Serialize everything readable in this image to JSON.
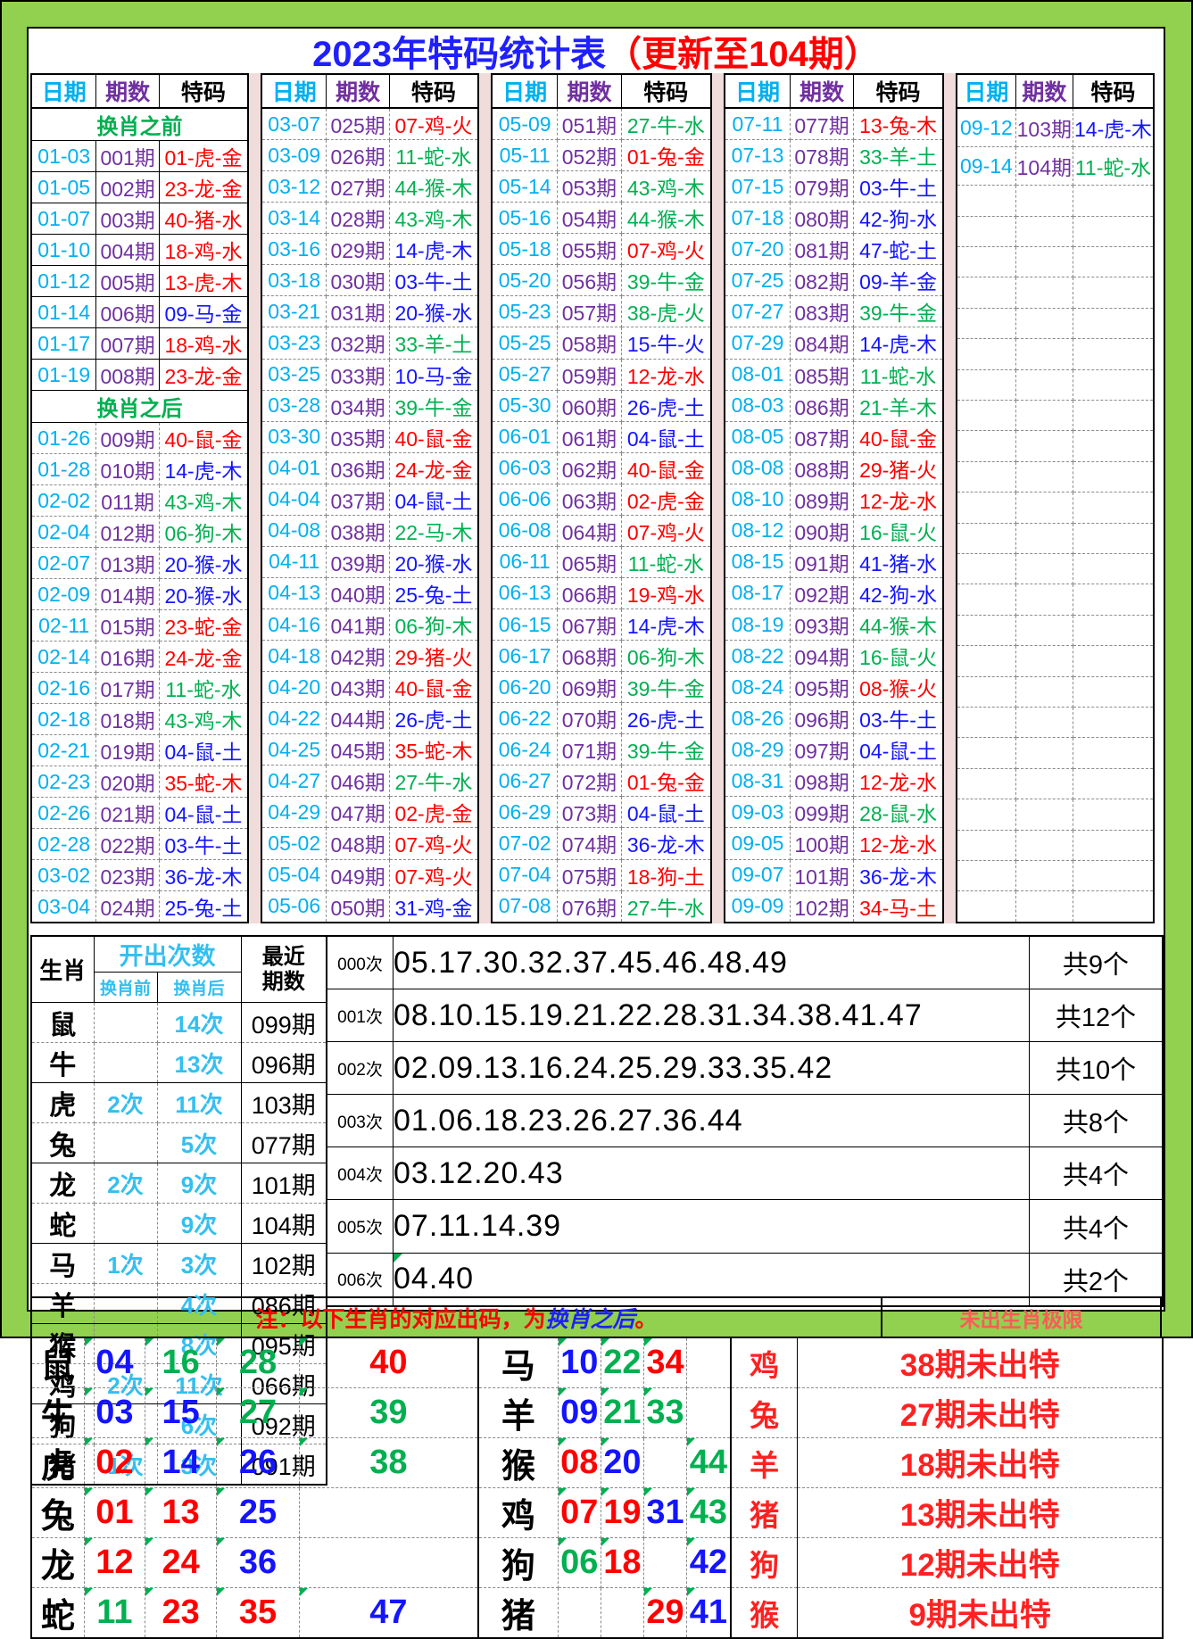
{
  "title": {
    "main": "2023年特码统计表",
    "suffix": "（更新至104期）"
  },
  "colors": {
    "title_blue": "#1F1FFF",
    "title_red": "#FF0000",
    "date": "#00B0F0",
    "period": "#7030A0",
    "red": "#FF0000",
    "blue": "#1414FF",
    "green": "#00B050",
    "section_green": "#00B050",
    "stat_cyan": "#33BFF0",
    "note_red": "#FF0000",
    "note_blue": "#1F1FFF",
    "limits_header_red": "#FF5A5A",
    "annex_red": "#FF2121",
    "separator_pink": "#EFDCDB",
    "background_green": "#92D050"
  },
  "ball_colors": {
    "red": [
      1,
      2,
      7,
      8,
      12,
      13,
      18,
      19,
      23,
      24,
      29,
      30,
      34,
      35,
      40,
      45,
      46
    ],
    "blue": [
      3,
      4,
      9,
      10,
      14,
      15,
      20,
      25,
      26,
      31,
      36,
      37,
      41,
      42,
      47,
      48
    ],
    "green": [
      5,
      6,
      11,
      16,
      17,
      21,
      22,
      27,
      28,
      32,
      33,
      38,
      39,
      43,
      44,
      49
    ]
  },
  "main_table": {
    "headers": [
      "日期",
      "期数",
      "特码"
    ],
    "groups": [
      {
        "rows": [
          {
            "s": "换肖之前"
          },
          {
            "d": "01-03",
            "p": "001期",
            "c": "01-虎-金",
            "solid": true
          },
          {
            "d": "01-05",
            "p": "002期",
            "c": "23-龙-金",
            "solid": true
          },
          {
            "d": "01-07",
            "p": "003期",
            "c": "40-猪-水",
            "solid": true
          },
          {
            "d": "01-10",
            "p": "004期",
            "c": "18-鸡-水",
            "solid": true
          },
          {
            "d": "01-12",
            "p": "005期",
            "c": "13-虎-木",
            "solid": true
          },
          {
            "d": "01-14",
            "p": "006期",
            "c": "09-马-金",
            "solid": true
          },
          {
            "d": "01-17",
            "p": "007期",
            "c": "18-鸡-水",
            "solid": true
          },
          {
            "d": "01-19",
            "p": "008期",
            "c": "23-龙-金",
            "solid": true
          },
          {
            "s": "换肖之后"
          },
          {
            "d": "01-26",
            "p": "009期",
            "c": "40-鼠-金"
          },
          {
            "d": "01-28",
            "p": "010期",
            "c": "14-虎-木"
          },
          {
            "d": "02-02",
            "p": "011期",
            "c": "43-鸡-木"
          },
          {
            "d": "02-04",
            "p": "012期",
            "c": "06-狗-木"
          },
          {
            "d": "02-07",
            "p": "013期",
            "c": "20-猴-水"
          },
          {
            "d": "02-09",
            "p": "014期",
            "c": "20-猴-水"
          },
          {
            "d": "02-11",
            "p": "015期",
            "c": "23-蛇-金"
          },
          {
            "d": "02-14",
            "p": "016期",
            "c": "24-龙-金"
          },
          {
            "d": "02-16",
            "p": "017期",
            "c": "11-蛇-水"
          },
          {
            "d": "02-18",
            "p": "018期",
            "c": "43-鸡-木"
          },
          {
            "d": "02-21",
            "p": "019期",
            "c": "04-鼠-土"
          },
          {
            "d": "02-23",
            "p": "020期",
            "c": "35-蛇-木"
          },
          {
            "d": "02-26",
            "p": "021期",
            "c": "04-鼠-土"
          },
          {
            "d": "02-28",
            "p": "022期",
            "c": "03-牛-土"
          },
          {
            "d": "03-02",
            "p": "023期",
            "c": "36-龙-木"
          },
          {
            "d": "03-04",
            "p": "024期",
            "c": "25-兔-土"
          }
        ]
      },
      {
        "rows": [
          {
            "d": "03-07",
            "p": "025期",
            "c": "07-鸡-火"
          },
          {
            "d": "03-09",
            "p": "026期",
            "c": "11-蛇-水"
          },
          {
            "d": "03-12",
            "p": "027期",
            "c": "44-猴-木"
          },
          {
            "d": "03-14",
            "p": "028期",
            "c": "43-鸡-木"
          },
          {
            "d": "03-16",
            "p": "029期",
            "c": "14-虎-木"
          },
          {
            "d": "03-18",
            "p": "030期",
            "c": "03-牛-土"
          },
          {
            "d": "03-21",
            "p": "031期",
            "c": "20-猴-水"
          },
          {
            "d": "03-23",
            "p": "032期",
            "c": "33-羊-土"
          },
          {
            "d": "03-25",
            "p": "033期",
            "c": "10-马-金"
          },
          {
            "d": "03-28",
            "p": "034期",
            "c": "39-牛-金"
          },
          {
            "d": "03-30",
            "p": "035期",
            "c": "40-鼠-金"
          },
          {
            "d": "04-01",
            "p": "036期",
            "c": "24-龙-金"
          },
          {
            "d": "04-04",
            "p": "037期",
            "c": "04-鼠-土"
          },
          {
            "d": "04-08",
            "p": "038期",
            "c": "22-马-木"
          },
          {
            "d": "04-11",
            "p": "039期",
            "c": "20-猴-水"
          },
          {
            "d": "04-13",
            "p": "040期",
            "c": "25-兔-土"
          },
          {
            "d": "04-16",
            "p": "041期",
            "c": "06-狗-木"
          },
          {
            "d": "04-18",
            "p": "042期",
            "c": "29-猪-火"
          },
          {
            "d": "04-20",
            "p": "043期",
            "c": "40-鼠-金"
          },
          {
            "d": "04-22",
            "p": "044期",
            "c": "26-虎-土"
          },
          {
            "d": "04-25",
            "p": "045期",
            "c": "35-蛇-木"
          },
          {
            "d": "04-27",
            "p": "046期",
            "c": "27-牛-水"
          },
          {
            "d": "04-29",
            "p": "047期",
            "c": "02-虎-金"
          },
          {
            "d": "05-02",
            "p": "048期",
            "c": "07-鸡-火"
          },
          {
            "d": "05-04",
            "p": "049期",
            "c": "07-鸡-火"
          },
          {
            "d": "05-06",
            "p": "050期",
            "c": "31-鸡-金"
          }
        ]
      },
      {
        "rows": [
          {
            "d": "05-09",
            "p": "051期",
            "c": "27-牛-水"
          },
          {
            "d": "05-11",
            "p": "052期",
            "c": "01-兔-金"
          },
          {
            "d": "05-14",
            "p": "053期",
            "c": "43-鸡-木"
          },
          {
            "d": "05-16",
            "p": "054期",
            "c": "44-猴-木"
          },
          {
            "d": "05-18",
            "p": "055期",
            "c": "07-鸡-火"
          },
          {
            "d": "05-20",
            "p": "056期",
            "c": "39-牛-金"
          },
          {
            "d": "05-23",
            "p": "057期",
            "c": "38-虎-火"
          },
          {
            "d": "05-25",
            "p": "058期",
            "c": "15-牛-火"
          },
          {
            "d": "05-27",
            "p": "059期",
            "c": "12-龙-水"
          },
          {
            "d": "05-30",
            "p": "060期",
            "c": "26-虎-土"
          },
          {
            "d": "06-01",
            "p": "061期",
            "c": "04-鼠-土"
          },
          {
            "d": "06-03",
            "p": "062期",
            "c": "40-鼠-金"
          },
          {
            "d": "06-06",
            "p": "063期",
            "c": "02-虎-金"
          },
          {
            "d": "06-08",
            "p": "064期",
            "c": "07-鸡-火"
          },
          {
            "d": "06-11",
            "p": "065期",
            "c": "11-蛇-水"
          },
          {
            "d": "06-13",
            "p": "066期",
            "c": "19-鸡-水"
          },
          {
            "d": "06-15",
            "p": "067期",
            "c": "14-虎-木"
          },
          {
            "d": "06-17",
            "p": "068期",
            "c": "06-狗-木"
          },
          {
            "d": "06-20",
            "p": "069期",
            "c": "39-牛-金"
          },
          {
            "d": "06-22",
            "p": "070期",
            "c": "26-虎-土"
          },
          {
            "d": "06-24",
            "p": "071期",
            "c": "39-牛-金"
          },
          {
            "d": "06-27",
            "p": "072期",
            "c": "01-兔-金"
          },
          {
            "d": "06-29",
            "p": "073期",
            "c": "04-鼠-土"
          },
          {
            "d": "07-02",
            "p": "074期",
            "c": "36-龙-木"
          },
          {
            "d": "07-04",
            "p": "075期",
            "c": "18-狗-土"
          },
          {
            "d": "07-08",
            "p": "076期",
            "c": "27-牛-水"
          }
        ]
      },
      {
        "rows": [
          {
            "d": "07-11",
            "p": "077期",
            "c": "13-兔-木"
          },
          {
            "d": "07-13",
            "p": "078期",
            "c": "33-羊-土"
          },
          {
            "d": "07-15",
            "p": "079期",
            "c": "03-牛-土"
          },
          {
            "d": "07-18",
            "p": "080期",
            "c": "42-狗-水"
          },
          {
            "d": "07-20",
            "p": "081期",
            "c": "47-蛇-土"
          },
          {
            "d": "07-25",
            "p": "082期",
            "c": "09-羊-金"
          },
          {
            "d": "07-27",
            "p": "083期",
            "c": "39-牛-金"
          },
          {
            "d": "07-29",
            "p": "084期",
            "c": "14-虎-木"
          },
          {
            "d": "08-01",
            "p": "085期",
            "c": "11-蛇-水"
          },
          {
            "d": "08-03",
            "p": "086期",
            "c": "21-羊-木"
          },
          {
            "d": "08-05",
            "p": "087期",
            "c": "40-鼠-金"
          },
          {
            "d": "08-08",
            "p": "088期",
            "c": "29-猪-火"
          },
          {
            "d": "08-10",
            "p": "089期",
            "c": "12-龙-水"
          },
          {
            "d": "08-12",
            "p": "090期",
            "c": "16-鼠-火"
          },
          {
            "d": "08-15",
            "p": "091期",
            "c": "41-猪-水"
          },
          {
            "d": "08-17",
            "p": "092期",
            "c": "42-狗-水"
          },
          {
            "d": "08-19",
            "p": "093期",
            "c": "44-猴-木"
          },
          {
            "d": "08-22",
            "p": "094期",
            "c": "16-鼠-火"
          },
          {
            "d": "08-24",
            "p": "095期",
            "c": "08-猴-火"
          },
          {
            "d": "08-26",
            "p": "096期",
            "c": "03-牛-土"
          },
          {
            "d": "08-29",
            "p": "097期",
            "c": "04-鼠-土"
          },
          {
            "d": "08-31",
            "p": "098期",
            "c": "12-龙-水"
          },
          {
            "d": "09-03",
            "p": "099期",
            "c": "28-鼠-水"
          },
          {
            "d": "09-05",
            "p": "100期",
            "c": "12-龙-水"
          },
          {
            "d": "09-07",
            "p": "101期",
            "c": "36-龙-木"
          },
          {
            "d": "09-09",
            "p": "102期",
            "c": "34-马-土"
          }
        ]
      },
      {
        "rows": [
          {
            "d": "09-12",
            "p": "103期",
            "c": "14-虎-木"
          },
          {
            "d": "09-14",
            "p": "104期",
            "c": "11-蛇-水"
          }
        ],
        "empty_rows": 24
      }
    ]
  },
  "zodiac_stats": {
    "header": {
      "zodiac": "生肖",
      "times": "开出次数",
      "before": "换肖前",
      "after": "换肖后",
      "recent": "最近\n期数"
    },
    "rows": [
      {
        "zodiac": "鼠",
        "before": "",
        "after": "14次",
        "recent": "099期"
      },
      {
        "zodiac": "牛",
        "before": "",
        "after": "13次",
        "recent": "096期"
      },
      {
        "zodiac": "虎",
        "before": "2次",
        "after": "11次",
        "recent": "103期"
      },
      {
        "zodiac": "兔",
        "before": "",
        "after": "5次",
        "recent": "077期"
      },
      {
        "zodiac": "龙",
        "before": "2次",
        "after": "9次",
        "recent": "101期"
      },
      {
        "zodiac": "蛇",
        "before": "",
        "after": "9次",
        "recent": "104期"
      },
      {
        "zodiac": "马",
        "before": "1次",
        "after": "3次",
        "recent": "102期"
      },
      {
        "zodiac": "羊",
        "before": "",
        "after": "4次",
        "recent": "086期"
      },
      {
        "zodiac": "猴",
        "before": "",
        "after": "8次",
        "recent": "095期"
      },
      {
        "zodiac": "鸡",
        "before": "2次",
        "after": "11次",
        "recent": "066期"
      },
      {
        "zodiac": "狗",
        "before": "",
        "after": "6次",
        "recent": "092期"
      },
      {
        "zodiac": "猪",
        "before": "1次",
        "after": "3次",
        "recent": "091期"
      }
    ]
  },
  "frequency_table": {
    "rows": [
      {
        "label": "000次",
        "numbers": "05.17.30.32.37.45.46.48.49",
        "total": "共9个"
      },
      {
        "label": "001次",
        "numbers": "08.10.15.19.21.22.28.31.34.38.41.47",
        "total": "共12个"
      },
      {
        "label": "002次",
        "numbers": "02.09.13.16.24.25.29.33.35.42",
        "total": "共10个"
      },
      {
        "label": "003次",
        "numbers": "01.06.18.23.26.27.36.44",
        "total": "共8个"
      },
      {
        "label": "004次",
        "numbers": "03.12.20.43",
        "total": "共4个"
      },
      {
        "label": "005次",
        "numbers": "07.11.14.39",
        "total": "共4个"
      },
      {
        "label": "006次",
        "numbers": "04.40",
        "total": "共2个",
        "marker": true
      }
    ]
  },
  "note": {
    "prefix": "注：以下生肖的对应出码，为",
    "highlight": "换肖之后",
    "suffix": "。"
  },
  "limits_header": "未出生肖极限",
  "mapping": {
    "left": [
      {
        "z": "鼠",
        "n": [
          "04",
          "16",
          "28",
          "40"
        ]
      },
      {
        "z": "牛",
        "n": [
          "03",
          "15",
          "27",
          "39"
        ]
      },
      {
        "z": "虎",
        "n": [
          "02",
          "14",
          "26",
          "38"
        ]
      },
      {
        "z": "兔",
        "n": [
          "01",
          "13",
          "25",
          ""
        ]
      },
      {
        "z": "龙",
        "n": [
          "12",
          "24",
          "36",
          ""
        ]
      },
      {
        "z": "蛇",
        "n": [
          "11",
          "23",
          "35",
          "47"
        ]
      }
    ],
    "right": [
      {
        "z": "马",
        "n": [
          "10",
          "22",
          "34",
          ""
        ],
        "lz": "鸡",
        "lt": "38期未出特"
      },
      {
        "z": "羊",
        "n": [
          "09",
          "21",
          "33",
          ""
        ],
        "lz": "兔",
        "lt": "27期未出特"
      },
      {
        "z": "猴",
        "n": [
          "08",
          "20",
          "",
          "44"
        ],
        "lz": "羊",
        "lt": "18期未出特"
      },
      {
        "z": "鸡",
        "n": [
          "07",
          "19",
          "31",
          "43"
        ],
        "lz": "猪",
        "lt": "13期未出特"
      },
      {
        "z": "狗",
        "n": [
          "06",
          "18",
          "",
          "42"
        ],
        "lz": "狗",
        "lt": "12期未出特"
      },
      {
        "z": "猪",
        "n": [
          "",
          "",
          "29",
          "41"
        ],
        "lz": "猴",
        "lt": "9期未出特"
      }
    ]
  }
}
